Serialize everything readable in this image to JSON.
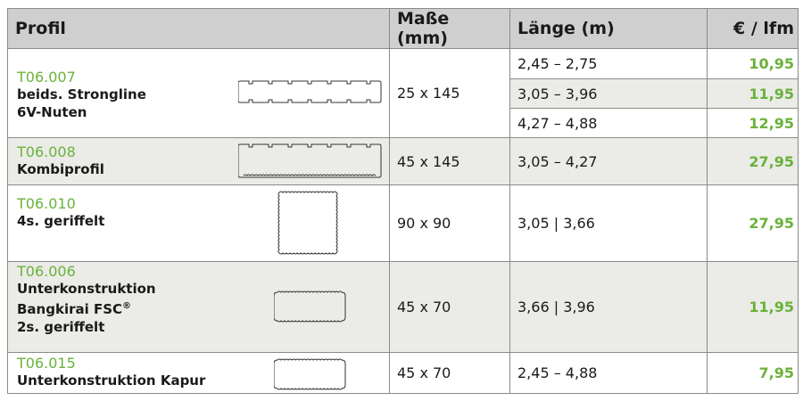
{
  "headers": {
    "profile": "Profil",
    "dimensions": "Maße (mm)",
    "length": "Länge (m)",
    "price": "€ / lfm"
  },
  "rows": [
    {
      "code": "T06.007",
      "desc_lines": [
        "beids. Strongline",
        "6V-Nuten"
      ],
      "dimensions": "25 x 145",
      "variants": [
        {
          "length": "2,45 – 2,75",
          "price": "10,95"
        },
        {
          "length": "3,05 – 3,96",
          "price": "11,95"
        },
        {
          "length": "4,27 – 4,88",
          "price": "12,95"
        }
      ]
    },
    {
      "code": "T06.008",
      "desc_lines": [
        "Kombiprofil"
      ],
      "dimensions": "45 x 145",
      "length": "3,05 – 4,27",
      "price": "27,95"
    },
    {
      "code": "T06.010",
      "desc_lines": [
        "4s. geriffelt"
      ],
      "dimensions": "90 x 90",
      "length": "3,05 | 3,66",
      "price": "27,95"
    },
    {
      "code": "T06.006",
      "desc_lines": [
        "Unterkonstruktion",
        "Bangkirai FSC",
        "2s. geriffelt"
      ],
      "desc_sup": "®",
      "dimensions": "45 x 70",
      "length": "3,66 | 3,96",
      "price": "11,95"
    },
    {
      "code": "T06.015",
      "desc_lines": [
        "Unterkonstruktion Kapur"
      ],
      "dimensions": "45 x 70",
      "length": "2,45 – 4,88",
      "price": "7,95"
    }
  ],
  "colors": {
    "accent_green": "#6ab23a",
    "header_bg": "#cfcfcf",
    "row_shade": "#ebebe8",
    "border": "#8a8a8a"
  }
}
